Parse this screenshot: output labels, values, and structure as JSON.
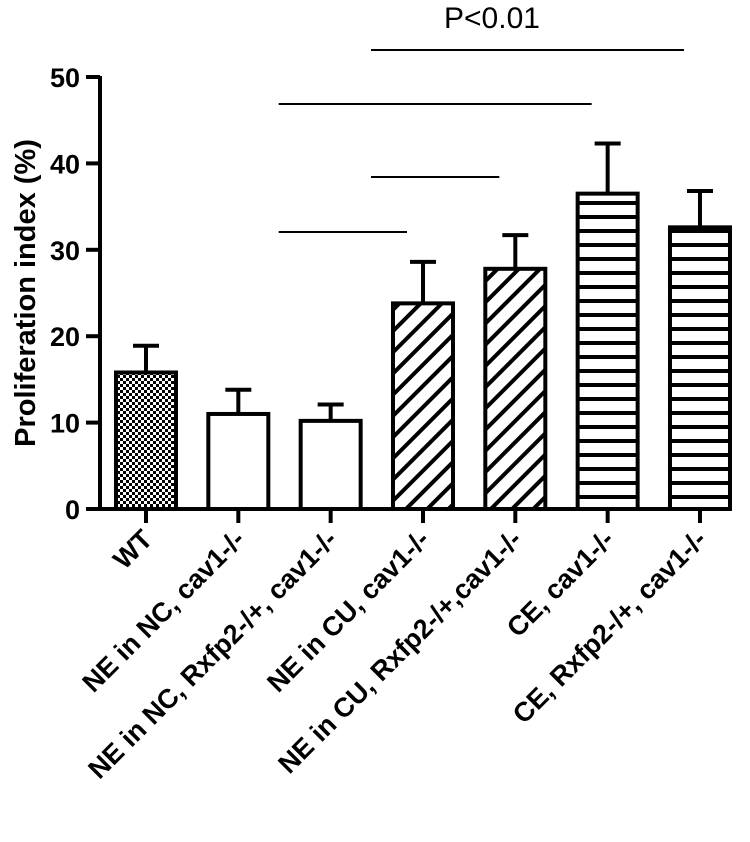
{
  "chart_data": {
    "type": "bar",
    "title": "",
    "xlabel": "",
    "ylabel": "Proliferation index (%)",
    "ylim": [
      0,
      50
    ],
    "yticks": [
      0,
      10,
      20,
      30,
      40,
      50
    ],
    "categories": [
      "WT",
      "NE in NC, cav1-/-",
      "NE in NC, Rxfp2-/+, cav1-/-",
      "NE in CU, cav1-/-",
      "NE in CU, Rxfp2-/+,cav1-/-",
      "CE, cav1-/-",
      "CE, Rxfp2-/+, cav1-/-"
    ],
    "values": [
      15.8,
      11.0,
      10.2,
      23.8,
      27.8,
      36.5,
      32.6
    ],
    "errors": [
      3.1,
      2.8,
      1.9,
      4.8,
      3.9,
      5.8,
      4.2
    ],
    "fill_patterns": [
      "checker",
      "none",
      "none",
      "diagonal",
      "diagonal",
      "horizontal",
      "horizontal"
    ],
    "significance": {
      "label": "P<0.01",
      "comparisons": [
        {
          "from": 3,
          "to": 6
        },
        {
          "from": 2,
          "to": 5
        },
        {
          "from": 3,
          "to": 4
        },
        {
          "from": 2,
          "to": 3
        }
      ]
    },
    "grid": false,
    "legend": "none"
  }
}
